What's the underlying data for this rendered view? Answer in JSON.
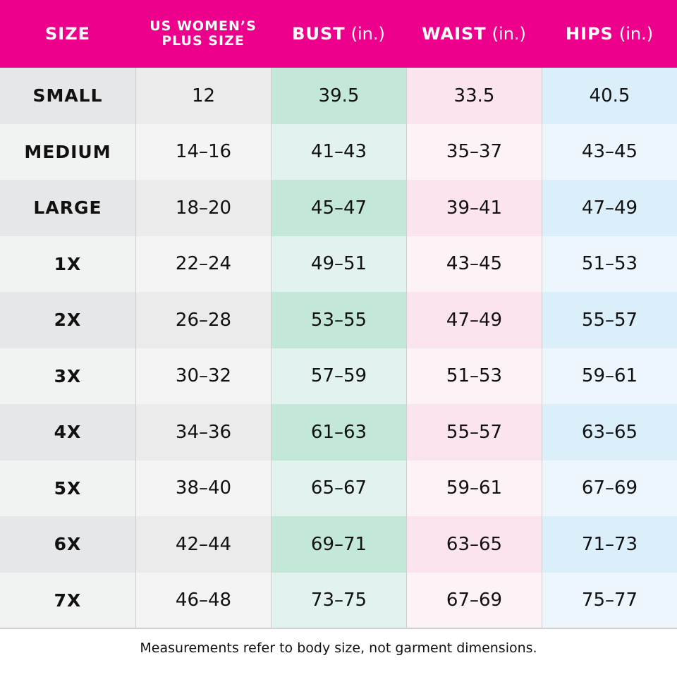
{
  "table": {
    "header": [
      {
        "lines": [
          "SIZE"
        ]
      },
      {
        "lines": [
          "US WOMEN’S",
          "PLUS SIZE"
        ]
      },
      {
        "lines": [
          "BUST"
        ],
        "unit": "(in.)"
      },
      {
        "lines": [
          "WAIST"
        ],
        "unit": "(in.)"
      },
      {
        "lines": [
          "HIPS"
        ],
        "unit": "(in.)"
      }
    ],
    "rows": [
      [
        "SMALL",
        "12",
        "39.5",
        "33.5",
        "40.5"
      ],
      [
        "MEDIUM",
        "14–16",
        "41–43",
        "35–37",
        "43–45"
      ],
      [
        "LARGE",
        "18–20",
        "45–47",
        "39–41",
        "47–49"
      ],
      [
        "1X",
        "22–24",
        "49–51",
        "43–45",
        "51–53"
      ],
      [
        "2X",
        "26–28",
        "53–55",
        "47–49",
        "55–57"
      ],
      [
        "3X",
        "30–32",
        "57–59",
        "51–53",
        "59–61"
      ],
      [
        "4X",
        "34–36",
        "61–63",
        "55–57",
        "63–65"
      ],
      [
        "5X",
        "38–40",
        "65–67",
        "59–61",
        "67–69"
      ],
      [
        "6X",
        "42–44",
        "69–71",
        "63–65",
        "71–73"
      ],
      [
        "7X",
        "46–48",
        "73–75",
        "67–69",
        "75–77"
      ]
    ]
  },
  "footer": {
    "note": "Measurements refer to body size, not garment dimensions."
  }
}
